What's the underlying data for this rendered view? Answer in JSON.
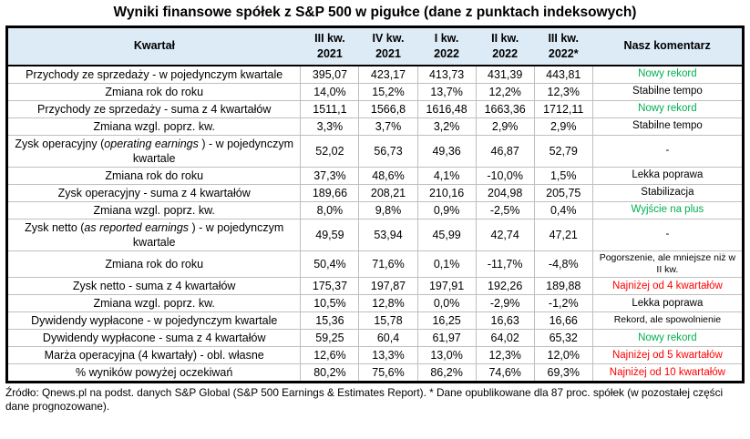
{
  "title": "Wyniki finansowe spółek z S&P 500 w pigułce (dane z punktach indeksowych)",
  "colors": {
    "header_bg": "#DDEBF7",
    "green": "#00B050",
    "red": "#FF0000",
    "black": "#000000",
    "grid": "#BFBFBF",
    "outer_border": "#000000"
  },
  "table": {
    "header": {
      "label": "Kwartał",
      "quarters": [
        {
          "line1": "III kw.",
          "line2": "2021"
        },
        {
          "line1": "IV kw.",
          "line2": "2021"
        },
        {
          "line1": "I kw.",
          "line2": "2022"
        },
        {
          "line1": "II kw.",
          "line2": "2022"
        },
        {
          "line1": "III kw.",
          "line2": "2022*"
        }
      ],
      "comment": "Nasz komentarz"
    },
    "rows": [
      {
        "label": [
          {
            "t": "Przychody ze sprzedaży - w pojedynczym kwartale"
          }
        ],
        "values": [
          "395,07",
          "423,17",
          "413,73",
          "431,39",
          "443,81"
        ],
        "comment": {
          "text": "Nowy rekord",
          "color": "green"
        }
      },
      {
        "label": [
          {
            "t": "Zmiana rok do roku"
          }
        ],
        "values": [
          "14,0%",
          "15,2%",
          "13,7%",
          "12,2%",
          "12,3%"
        ],
        "comment": {
          "text": "Stabilne tempo",
          "color": "black"
        }
      },
      {
        "label": [
          {
            "t": "Przychody ze sprzedaży - suma z 4 kwartałów"
          }
        ],
        "values": [
          "1511,1",
          "1566,8",
          "1616,48",
          "1663,36",
          "1712,11"
        ],
        "comment": {
          "text": "Nowy rekord",
          "color": "green"
        }
      },
      {
        "label": [
          {
            "t": "Zmiana wzgl. poprz. kw."
          }
        ],
        "values": [
          "3,3%",
          "3,7%",
          "3,2%",
          "2,9%",
          "2,9%"
        ],
        "comment": {
          "text": "Stabilne tempo",
          "color": "black"
        }
      },
      {
        "label": [
          {
            "t": "Zysk operacyjny ("
          },
          {
            "t": "operating earnings",
            "i": true
          },
          {
            "t": " ) - w pojedynczym kwartale"
          }
        ],
        "values": [
          "52,02",
          "56,73",
          "49,36",
          "46,87",
          "52,79"
        ],
        "comment": {
          "text": "-",
          "color": "black"
        }
      },
      {
        "label": [
          {
            "t": "Zmiana rok do roku"
          }
        ],
        "values": [
          "37,3%",
          "48,6%",
          "4,1%",
          "-10,0%",
          "1,5%"
        ],
        "comment": {
          "text": "Lekka poprawa",
          "color": "black"
        }
      },
      {
        "label": [
          {
            "t": "Zysk operacyjny - suma z 4 kwartałów"
          }
        ],
        "values": [
          "189,66",
          "208,21",
          "210,16",
          "204,98",
          "205,75"
        ],
        "comment": {
          "text": "Stabilizacja",
          "color": "black"
        }
      },
      {
        "label": [
          {
            "t": "Zmiana wzgl. poprz. kw."
          }
        ],
        "values": [
          "8,0%",
          "9,8%",
          "0,9%",
          "-2,5%",
          "0,4%"
        ],
        "comment": {
          "text": "Wyjście na plus",
          "color": "green"
        }
      },
      {
        "label": [
          {
            "t": "Zysk netto ("
          },
          {
            "t": "as reported earnings",
            "i": true
          },
          {
            "t": " ) - w pojedynczym kwartale"
          }
        ],
        "values": [
          "49,59",
          "53,94",
          "45,99",
          "42,74",
          "47,21"
        ],
        "comment": {
          "text": "-",
          "color": "black"
        }
      },
      {
        "label": [
          {
            "t": "Zmiana rok do roku"
          }
        ],
        "values": [
          "50,4%",
          "71,6%",
          "0,1%",
          "-11,7%",
          "-4,8%"
        ],
        "comment": {
          "text": "Pogorszenie, ale mniejsze niż w II kw.",
          "color": "black",
          "small": true
        }
      },
      {
        "label": [
          {
            "t": "Zysk netto - suma z 4 kwartałów"
          }
        ],
        "values": [
          "175,37",
          "197,87",
          "197,91",
          "192,26",
          "189,88"
        ],
        "comment": {
          "text": "Najniżej od 4 kwartałów",
          "color": "red"
        }
      },
      {
        "label": [
          {
            "t": "Zmiana wzgl. poprz. kw."
          }
        ],
        "values": [
          "10,5%",
          "12,8%",
          "0,0%",
          "-2,9%",
          "-1,2%"
        ],
        "comment": {
          "text": "Lekka poprawa",
          "color": "black"
        }
      },
      {
        "label": [
          {
            "t": "Dywidendy wypłacone - w pojedynczym kwartale"
          }
        ],
        "values": [
          "15,36",
          "15,78",
          "16,25",
          "16,63",
          "16,66"
        ],
        "comment": {
          "text": "Rekord, ale spowolnienie",
          "color": "black",
          "small": true
        }
      },
      {
        "label": [
          {
            "t": "Dywidendy wypłacone - suma z 4 kwartałów"
          }
        ],
        "values": [
          "59,25",
          "60,4",
          "61,97",
          "64,02",
          "65,32"
        ],
        "comment": {
          "text": "Nowy rekord",
          "color": "green"
        }
      },
      {
        "label": [
          {
            "t": "Marża operacyjna (4 kwartały) - obl. własne"
          }
        ],
        "values": [
          "12,6%",
          "13,3%",
          "13,0%",
          "12,3%",
          "12,0%"
        ],
        "comment": {
          "text": "Najniżej od 5 kwartałów",
          "color": "red"
        }
      },
      {
        "label": [
          {
            "t": "% wyników powyżej oczekiwań"
          }
        ],
        "values": [
          "80,2%",
          "75,6%",
          "86,2%",
          "74,6%",
          "69,3%"
        ],
        "comment": {
          "text": "Najniżej od 10 kwartałów",
          "color": "red"
        }
      }
    ]
  },
  "footnote": "Źródło: Qnews.pl na podst. danych S&P Global (S&P 500 Earnings & Estimates Report). * Dane opublikowane dla 87 proc. spółek (w pozostałej części dane prognozowane)."
}
